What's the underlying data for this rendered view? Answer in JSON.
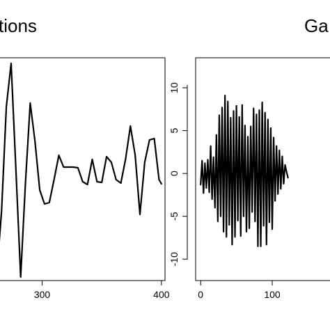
{
  "chart_data": [
    {
      "type": "line",
      "title": "tions",
      "xlabel": "",
      "ylabel": "",
      "xticks": [
        300,
        400
      ],
      "xlim": [
        253,
        403
      ],
      "ylim": [
        -16,
        16
      ],
      "color": "#000000",
      "series": [
        {
          "x": [
            254,
            258,
            262,
            266,
            270,
            274,
            278,
            282,
            286,
            290,
            294,
            298,
            302,
            306,
            310,
            314,
            318,
            322,
            326,
            330,
            334,
            338,
            342,
            346,
            350,
            354,
            358,
            362,
            366,
            370,
            374,
            378,
            382,
            386,
            390,
            394,
            398,
            400
          ],
          "values": [
            -1,
            -9,
            -15,
            -6,
            9,
            15.2,
            0,
            -15.5,
            -2,
            9.5,
            4,
            -3,
            -5,
            -4.8,
            -1.5,
            2,
            0.3,
            0.3,
            0.3,
            0.2,
            -1.8,
            -2.2,
            1.4,
            -1.8,
            -1.9,
            1.8,
            1,
            -1.5,
            -2,
            1.5,
            6.2,
            2,
            -6.5,
            1,
            4.2,
            4.4,
            -1.5,
            -2.1
          ]
        }
      ]
    },
    {
      "type": "line",
      "title": "Ga",
      "xlabel": "",
      "ylabel": "",
      "xticks": [
        0,
        100
      ],
      "yticks": [
        -10,
        -5,
        0,
        5,
        10
      ],
      "xlim": [
        -7,
        207
      ],
      "ylim": [
        -12.5,
        13.5
      ],
      "color": "#000000",
      "series": [
        {
          "x": [
            0,
            2,
            4,
            6,
            8,
            10,
            12,
            14,
            16,
            18,
            20,
            22,
            24,
            26,
            28,
            30,
            32,
            34,
            36,
            38,
            40,
            42,
            44,
            46,
            48,
            50,
            52,
            54,
            56,
            58,
            60,
            62,
            64,
            66,
            68,
            70,
            72,
            74,
            76,
            78,
            80,
            82,
            84,
            86,
            88,
            90,
            92,
            94,
            96,
            98,
            100,
            102,
            104,
            106,
            108,
            110,
            112,
            114,
            116,
            118,
            120,
            122
          ],
          "values": [
            -1.3,
            1.5,
            -2.3,
            1.2,
            -1.7,
            1.6,
            -2.2,
            3.2,
            -3,
            1.9,
            -4,
            4.5,
            -5.6,
            6.8,
            -5,
            7.7,
            -6.8,
            9.1,
            -7.4,
            8.4,
            -6,
            6.5,
            -8.3,
            7.3,
            -7.4,
            7.9,
            -5.5,
            6.6,
            -7.3,
            8,
            -5,
            5.6,
            -6.8,
            4.3,
            -6.4,
            5.5,
            -4.5,
            7.6,
            -5.6,
            6.9,
            -8.5,
            7.4,
            -8.5,
            8.3,
            -6.1,
            7.1,
            -8.3,
            6.3,
            -5.7,
            5.3,
            -6.5,
            4.2,
            -3.2,
            3.2,
            -2.4,
            2.7,
            -1.8,
            2,
            -1.2,
            1,
            0.2,
            -0.5
          ]
        }
      ]
    }
  ]
}
